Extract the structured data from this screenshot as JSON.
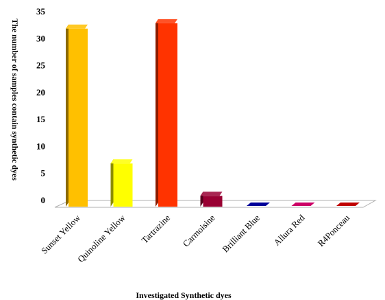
{
  "chart_data": {
    "type": "bar",
    "title": "",
    "xlabel": "Investigated Synthetic dyes",
    "ylabel": "The number of samples contain synthetic dyes",
    "ylim": [
      0,
      35
    ],
    "yticks": [
      "0",
      "5",
      "10",
      "15",
      "20",
      "25",
      "30",
      "35"
    ],
    "categories": [
      "Sunset Yellow",
      "Quinoline Yellow",
      "Tartrazine",
      "Carmoisine",
      "Brilliant Blue",
      "Allura Red",
      "R4Ponceau"
    ],
    "values": [
      33,
      8,
      34,
      2,
      0,
      0,
      0
    ],
    "colors": [
      "#FFC000",
      "#FFFF00",
      "#FF3300",
      "#990033",
      "#000099",
      "#CC0066",
      "#C00000"
    ],
    "grid": false,
    "legend": "none",
    "style": "3d-column"
  }
}
